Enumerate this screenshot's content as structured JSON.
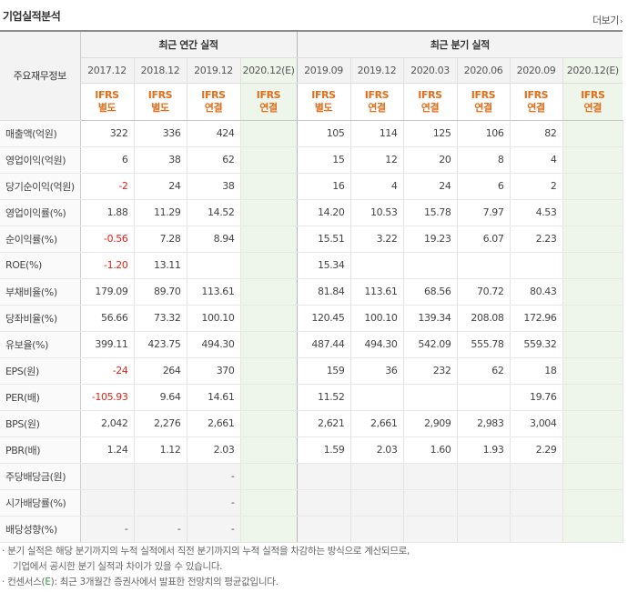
{
  "header": {
    "title": "기업실적분석",
    "more_label": "더보기"
  },
  "table": {
    "corner_label": "주요재무정보",
    "group_annual": "최근 연간 실적",
    "group_quarter": "최근 분기 실적",
    "periods": [
      "2017.12",
      "2018.12",
      "2019.12",
      "2020.12(E)",
      "2019.09",
      "2019.12",
      "2020.03",
      "2020.06",
      "2020.09",
      "2020.12(E)"
    ],
    "basis": [
      [
        "IFRS",
        "별도"
      ],
      [
        "IFRS",
        "별도"
      ],
      [
        "IFRS",
        "연결"
      ],
      [
        "IFRS",
        "연결"
      ],
      [
        "IFRS",
        "별도"
      ],
      [
        "IFRS",
        "연결"
      ],
      [
        "IFRS",
        "연결"
      ],
      [
        "IFRS",
        "연결"
      ],
      [
        "IFRS",
        "연결"
      ],
      [
        "IFRS",
        "연결"
      ]
    ],
    "rows": [
      {
        "label": "매출액(억원)",
        "values": [
          "322",
          "336",
          "424",
          "",
          "105",
          "114",
          "125",
          "106",
          "82",
          ""
        ]
      },
      {
        "label": "영업이익(억원)",
        "values": [
          "6",
          "38",
          "62",
          "",
          "15",
          "12",
          "20",
          "8",
          "4",
          ""
        ]
      },
      {
        "label": "당기순이익(억원)",
        "values": [
          "-2",
          "24",
          "38",
          "",
          "16",
          "4",
          "24",
          "6",
          "2",
          ""
        ]
      },
      {
        "label": "영업이익률(%)",
        "values": [
          "1.88",
          "11.29",
          "14.52",
          "",
          "14.20",
          "10.53",
          "15.78",
          "7.97",
          "4.53",
          ""
        ]
      },
      {
        "label": "순이익률(%)",
        "values": [
          "-0.56",
          "7.28",
          "8.94",
          "",
          "15.51",
          "3.22",
          "19.23",
          "6.07",
          "2.23",
          ""
        ]
      },
      {
        "label": "ROE(%)",
        "values": [
          "-1.20",
          "13.11",
          "",
          "",
          "15.34",
          "",
          "",
          "",
          "",
          ""
        ]
      },
      {
        "label": "부채비율(%)",
        "values": [
          "179.09",
          "89.70",
          "113.61",
          "",
          "81.84",
          "113.61",
          "68.56",
          "70.72",
          "80.43",
          ""
        ]
      },
      {
        "label": "당좌비율(%)",
        "values": [
          "56.66",
          "73.32",
          "100.10",
          "",
          "120.45",
          "100.10",
          "139.34",
          "208.08",
          "172.96",
          ""
        ]
      },
      {
        "label": "유보율(%)",
        "values": [
          "399.11",
          "423.75",
          "494.30",
          "",
          "487.44",
          "494.30",
          "542.09",
          "555.78",
          "559.32",
          ""
        ]
      },
      {
        "label": "EPS(원)",
        "values": [
          "-24",
          "264",
          "370",
          "",
          "159",
          "36",
          "232",
          "62",
          "18",
          ""
        ]
      },
      {
        "label": "PER(배)",
        "values": [
          "-105.93",
          "9.64",
          "14.61",
          "",
          "11.52",
          "",
          "",
          "",
          "19.76",
          ""
        ]
      },
      {
        "label": "BPS(원)",
        "values": [
          "2,042",
          "2,276",
          "2,661",
          "",
          "2,621",
          "2,661",
          "2,909",
          "2,983",
          "3,004",
          ""
        ]
      },
      {
        "label": "PBR(배)",
        "values": [
          "1.24",
          "1.12",
          "2.03",
          "",
          "1.59",
          "2.03",
          "1.60",
          "1.93",
          "2.29",
          ""
        ]
      },
      {
        "label": "주당배당금(원)",
        "values": [
          "",
          "",
          "-",
          "",
          "",
          "",
          "",
          "",
          "",
          ""
        ]
      },
      {
        "label": "시가배당률(%)",
        "values": [
          "",
          "",
          "-",
          "",
          "",
          "",
          "",
          "",
          "",
          ""
        ]
      },
      {
        "label": "배당성향(%)",
        "values": [
          "-",
          "-",
          "-",
          "",
          "",
          "",
          "",
          "",
          "",
          ""
        ]
      }
    ]
  },
  "notes": {
    "note1_line1": "분기 실적은 해당 분기까지의 누적 실적에서 직전 분기까지의 누적 실적을 차감하는 방식으로 계산되므로,",
    "note1_line2": "기업에서 공시한 분기 실적과 차이가 있을 수 있습니다.",
    "note2_prefix": "컨센서스(",
    "note2_e": "E",
    "note2_suffix": "): 최근 3개월간 증권사에서 발표한 전망치의 평균값입니다."
  },
  "colors": {
    "negative": "#e0251b",
    "ifrs": "#e06e1a",
    "estimate_bg": "#eef6ec",
    "consensus_e": "#2a9a35"
  }
}
